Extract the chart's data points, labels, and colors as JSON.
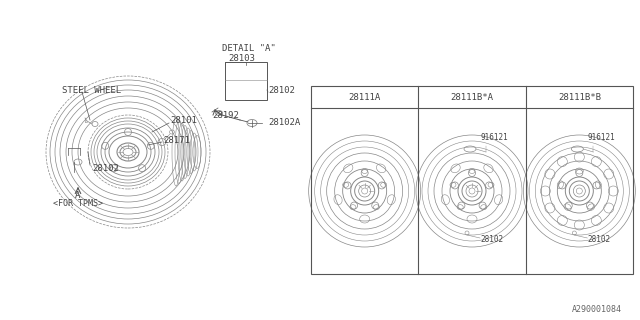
{
  "bg_color": "#ffffff",
  "line_color": "#888888",
  "dark_line": "#555555",
  "text_color": "#444444",
  "footer_id": "A290001084",
  "labels": {
    "steel_wheel": "STEEL WHEEL",
    "part_28101": "28101",
    "part_28171": "28171",
    "part_28102": "28102",
    "part_28192": "28192",
    "part_28102a": "28102A",
    "part_28103": "28103",
    "detail_a": "DETAIL \"A\"",
    "for_tpms": "<FOR TPMS>",
    "label_a": "A",
    "col1": "28111A",
    "col2": "28111B*A",
    "col3": "28111B*B",
    "part_916121": "916121",
    "part_28102_b": "28102"
  },
  "fig_width": 6.4,
  "fig_height": 3.2,
  "dpi": 100
}
